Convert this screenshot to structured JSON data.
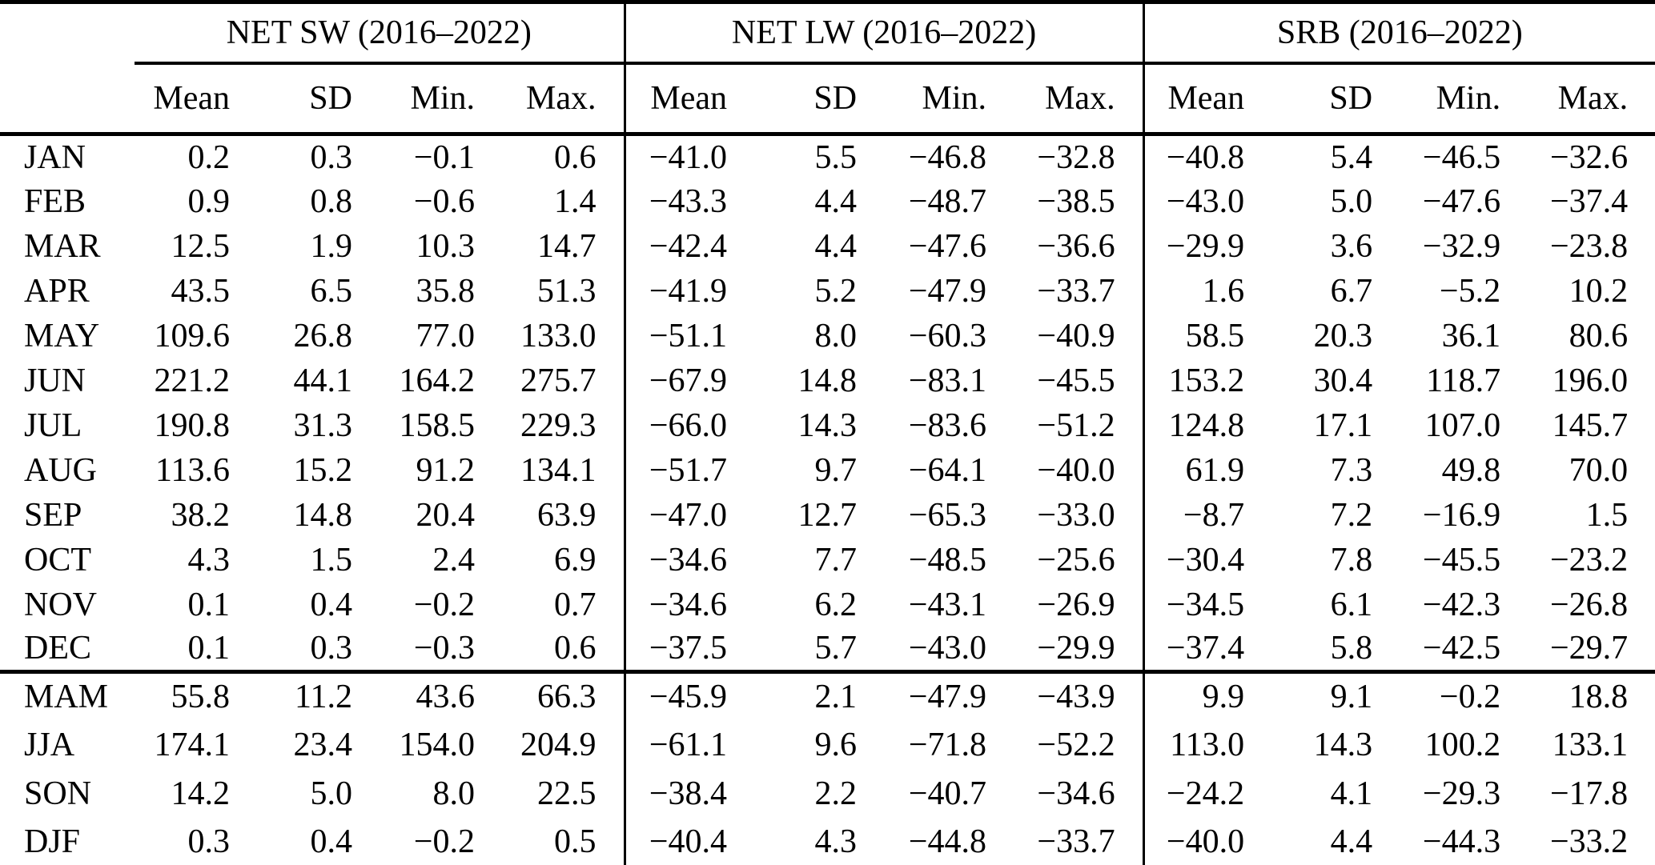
{
  "table": {
    "groups": [
      {
        "label": "NET SW (2016–2022)"
      },
      {
        "label": "NET LW (2016–2022)"
      },
      {
        "label": "SRB (2016–2022)"
      }
    ],
    "subheaders": [
      "Mean",
      "SD",
      "Min.",
      "Max."
    ],
    "monthly_rows": [
      {
        "label": "JAN",
        "values": [
          "0.2",
          "0.3",
          "−0.1",
          "0.6",
          "−41.0",
          "5.5",
          "−46.8",
          "−32.8",
          "−40.8",
          "5.4",
          "−46.5",
          "−32.6"
        ]
      },
      {
        "label": "FEB",
        "values": [
          "0.9",
          "0.8",
          "−0.6",
          "1.4",
          "−43.3",
          "4.4",
          "−48.7",
          "−38.5",
          "−43.0",
          "5.0",
          "−47.6",
          "−37.4"
        ]
      },
      {
        "label": "MAR",
        "values": [
          "12.5",
          "1.9",
          "10.3",
          "14.7",
          "−42.4",
          "4.4",
          "−47.6",
          "−36.6",
          "−29.9",
          "3.6",
          "−32.9",
          "−23.8"
        ]
      },
      {
        "label": "APR",
        "values": [
          "43.5",
          "6.5",
          "35.8",
          "51.3",
          "−41.9",
          "5.2",
          "−47.9",
          "−33.7",
          "1.6",
          "6.7",
          "−5.2",
          "10.2"
        ]
      },
      {
        "label": "MAY",
        "values": [
          "109.6",
          "26.8",
          "77.0",
          "133.0",
          "−51.1",
          "8.0",
          "−60.3",
          "−40.9",
          "58.5",
          "20.3",
          "36.1",
          "80.6"
        ]
      },
      {
        "label": "JUN",
        "values": [
          "221.2",
          "44.1",
          "164.2",
          "275.7",
          "−67.9",
          "14.8",
          "−83.1",
          "−45.5",
          "153.2",
          "30.4",
          "118.7",
          "196.0"
        ]
      },
      {
        "label": "JUL",
        "values": [
          "190.8",
          "31.3",
          "158.5",
          "229.3",
          "−66.0",
          "14.3",
          "−83.6",
          "−51.2",
          "124.8",
          "17.1",
          "107.0",
          "145.7"
        ]
      },
      {
        "label": "AUG",
        "values": [
          "113.6",
          "15.2",
          "91.2",
          "134.1",
          "−51.7",
          "9.7",
          "−64.1",
          "−40.0",
          "61.9",
          "7.3",
          "49.8",
          "70.0"
        ]
      },
      {
        "label": "SEP",
        "values": [
          "38.2",
          "14.8",
          "20.4",
          "63.9",
          "−47.0",
          "12.7",
          "−65.3",
          "−33.0",
          "−8.7",
          "7.2",
          "−16.9",
          "1.5"
        ]
      },
      {
        "label": "OCT",
        "values": [
          "4.3",
          "1.5",
          "2.4",
          "6.9",
          "−34.6",
          "7.7",
          "−48.5",
          "−25.6",
          "−30.4",
          "7.8",
          "−45.5",
          "−23.2"
        ]
      },
      {
        "label": "NOV",
        "values": [
          "0.1",
          "0.4",
          "−0.2",
          "0.7",
          "−34.6",
          "6.2",
          "−43.1",
          "−26.9",
          "−34.5",
          "6.1",
          "−42.3",
          "−26.8"
        ]
      },
      {
        "label": "DEC",
        "values": [
          "0.1",
          "0.3",
          "−0.3",
          "0.6",
          "−37.5",
          "5.7",
          "−43.0",
          "−29.9",
          "−37.4",
          "5.8",
          "−42.5",
          "−29.7"
        ]
      }
    ],
    "seasonal_rows": [
      {
        "label": "MAM",
        "values": [
          "55.8",
          "11.2",
          "43.6",
          "66.3",
          "−45.9",
          "2.1",
          "−47.9",
          "−43.9",
          "9.9",
          "9.1",
          "−0.2",
          "18.8"
        ]
      },
      {
        "label": "JJA",
        "values": [
          "174.1",
          "23.4",
          "154.0",
          "204.9",
          "−61.1",
          "9.6",
          "−71.8",
          "−52.2",
          "113.0",
          "14.3",
          "100.2",
          "133.1"
        ]
      },
      {
        "label": "SON",
        "values": [
          "14.2",
          "5.0",
          "8.0",
          "22.5",
          "−38.4",
          "2.2",
          "−40.7",
          "−34.6",
          "−24.2",
          "4.1",
          "−29.3",
          "−17.8"
        ]
      },
      {
        "label": "DJF",
        "values": [
          "0.3",
          "0.4",
          "−0.2",
          "0.5",
          "−40.4",
          "4.3",
          "−44.8",
          "−33.7",
          "−40.0",
          "4.4",
          "−44.3",
          "−33.2"
        ]
      }
    ]
  }
}
